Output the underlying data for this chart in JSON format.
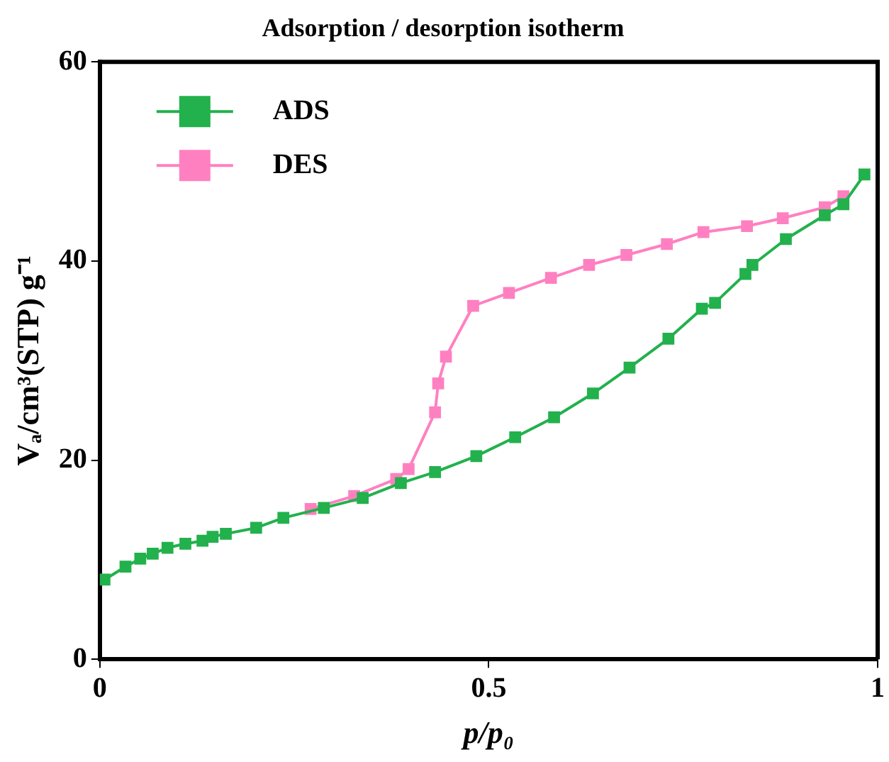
{
  "chart_data": {
    "type": "line",
    "title": "Adsorption / desorption isotherm",
    "xlabel": "p/p₀",
    "ylabel": "Vₐ/cm³(STP) g⁻¹",
    "xlim": [
      0,
      1
    ],
    "xticks": [
      0,
      0.5,
      1
    ],
    "ylim": [
      0,
      60
    ],
    "yticks": [
      0,
      20,
      40,
      60
    ],
    "grid": false,
    "legend": "top left",
    "marker": "square",
    "line_style": "solid",
    "series": [
      {
        "name": "ADS",
        "color": "#22b14c",
        "x": [
          0.006,
          0.033,
          0.052,
          0.068,
          0.087,
          0.11,
          0.132,
          0.145,
          0.162,
          0.201,
          0.236,
          0.288,
          0.338,
          0.387,
          0.431,
          0.484,
          0.534,
          0.584,
          0.634,
          0.681,
          0.731,
          0.774,
          0.791,
          0.83,
          0.839,
          0.882,
          0.932,
          0.956,
          0.983
        ],
        "values": [
          8.0,
          9.3,
          10.1,
          10.6,
          11.2,
          11.6,
          11.9,
          12.3,
          12.6,
          13.2,
          14.2,
          15.2,
          16.2,
          17.7,
          18.8,
          20.4,
          22.3,
          24.3,
          26.7,
          29.3,
          32.2,
          35.2,
          35.8,
          38.7,
          39.6,
          42.2,
          44.6,
          45.7,
          48.7
        ]
      },
      {
        "name": "DES",
        "color": "#ff80c0",
        "x": [
          0.271,
          0.327,
          0.381,
          0.397,
          0.431,
          0.435,
          0.445,
          0.48,
          0.526,
          0.58,
          0.629,
          0.677,
          0.729,
          0.776,
          0.832,
          0.878,
          0.932,
          0.956
        ],
        "values": [
          15.1,
          16.4,
          18.1,
          19.1,
          24.8,
          27.7,
          30.4,
          35.5,
          36.8,
          38.3,
          39.6,
          40.6,
          41.7,
          42.9,
          43.5,
          44.3,
          45.4,
          46.5
        ]
      }
    ]
  }
}
